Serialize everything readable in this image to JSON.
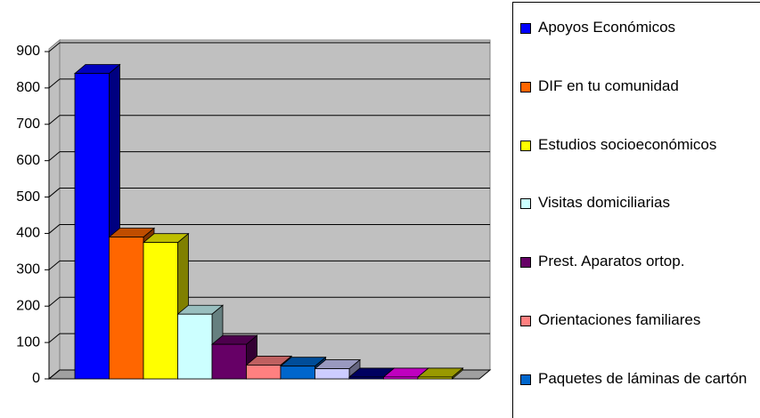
{
  "chart_data": {
    "type": "bar3d",
    "series": [
      {
        "name": "Apoyos Económicos",
        "color": "#0000ff",
        "values": [
          840
        ]
      },
      {
        "name": "DIF en tu comunidad",
        "color": "#ff6600",
        "values": [
          390
        ]
      },
      {
        "name": "Estudios socioeconómicos",
        "color": "#ffff00",
        "values": [
          375
        ]
      },
      {
        "name": "Visitas domiciliarias",
        "color": "#ccffff",
        "values": [
          178
        ]
      },
      {
        "name": "Prest. Aparatos ortop.",
        "color": "#660066",
        "values": [
          95
        ]
      },
      {
        "name": "Orientaciones familiares",
        "color": "#ff8080",
        "values": [
          38
        ]
      },
      {
        "name": "Paquetes de láminas de cartón",
        "color": "#0066cc",
        "values": [
          35
        ]
      },
      {
        "name": null,
        "color": "#ccccff",
        "values": [
          28
        ]
      },
      {
        "name": null,
        "color": "#000080",
        "values": [
          5
        ]
      },
      {
        "name": null,
        "color": "#ff00ff",
        "values": [
          5
        ]
      },
      {
        "name": null,
        "color": "#cccc00",
        "values": [
          5
        ]
      }
    ],
    "ylim": [
      0,
      900
    ],
    "yticks": [
      0,
      100,
      200,
      300,
      400,
      500,
      600,
      700,
      800,
      900
    ],
    "grid": true
  }
}
